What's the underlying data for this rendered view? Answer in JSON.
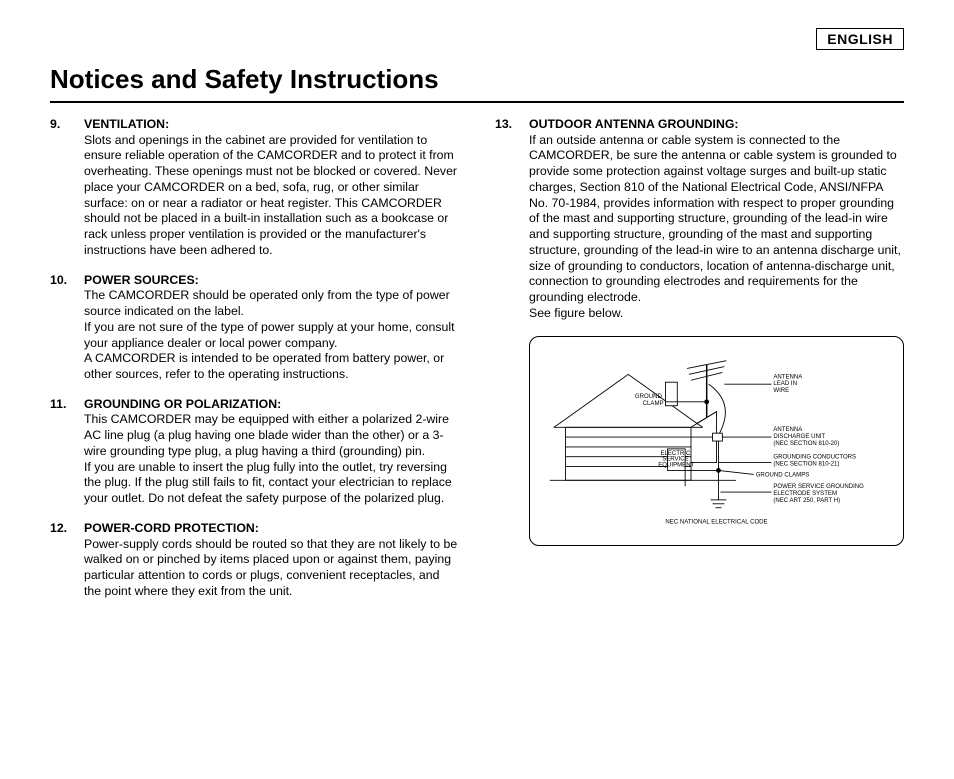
{
  "language_label": "ENGLISH",
  "page_title": "Notices and Safety Instructions",
  "left_items": [
    {
      "num": "9.",
      "heading": "VENTILATION:",
      "body": "Slots and openings in the cabinet are provided for ventilation to ensure reliable operation of the CAMCORDER and to protect it from overheating. These openings must not be blocked or covered. Never place your CAMCORDER on a bed, sofa, rug, or other similar surface: on or near a radiator or heat register. This CAMCORDER should not be placed in a built-in installation such as a bookcase or rack unless proper ventilation is provided or the manufacturer's instructions have been adhered to."
    },
    {
      "num": "10.",
      "heading": "POWER SOURCES:",
      "body": "The CAMCORDER should be operated only from the type of power source indicated on the label.\nIf you are not sure of the type of power supply at your home, consult your appliance dealer or local power company.\nA CAMCORDER is intended to be operated from battery power, or other sources, refer to the operating instructions."
    },
    {
      "num": "11.",
      "heading": "GROUNDING OR POLARIZATION:",
      "body": "This CAMCORDER may be equipped with either a polarized 2-wire AC line plug (a plug having one blade wider than the other) or a 3-wire grounding type plug, a plug having a third (grounding) pin.\nIf you are unable to insert the plug fully into the outlet, try reversing the plug. If the plug still fails to fit, contact your electrician to replace your outlet. Do not defeat the safety purpose of the polarized plug."
    },
    {
      "num": "12.",
      "heading": "POWER-CORD PROTECTION:",
      "body": "Power-supply cords should be routed so that they are not likely to be walked on or pinched by items placed upon or against them, paying particular attention to cords or plugs, convenient receptacles, and the point where they exit from the unit."
    }
  ],
  "right_items": [
    {
      "num": "13.",
      "heading": "OUTDOOR ANTENNA GROUNDING:",
      "body": "If an outside antenna or cable system is connected to the CAMCORDER, be sure the antenna or cable system is grounded to provide some protection against voltage surges and built-up static charges, Section 810 of the National Electrical Code, ANSI/NFPA No. 70-1984, provides information with respect to proper grounding of the mast and supporting structure, grounding of the lead-in wire and supporting structure, grounding of the mast and supporting structure, grounding of the lead-in wire to an antenna discharge unit, size of grounding to conductors, location of antenna-discharge unit, connection to grounding electrodes and requirements for the grounding electrode.\nSee figure below."
    }
  ],
  "figure": {
    "labels": {
      "ground_clamp": "GROUND\nCLAMP",
      "antenna_lead_in": "ANTENNA\nLEAD IN\nWIRE",
      "antenna_discharge": "ANTENNA\nDISCHARGE UNIT\n(NEC SECTION 810-20)",
      "electric_service": "ELECTRIC\nSERVICE\nEQUIPMENT",
      "grounding_conductors": "GROUNDING CONDUCTORS\n(NEC SECTION 810-21)",
      "ground_clamps2": "GROUND CLAMPS",
      "power_service": "POWER SERVICE GROUNDING\nELECTRODE SYSTEM\n(NEC ART 250, PART H)",
      "caption": "NEC NATIONAL ELECTRICAL CODE"
    },
    "stroke_color": "#000000",
    "stroke_width": 0.8
  }
}
